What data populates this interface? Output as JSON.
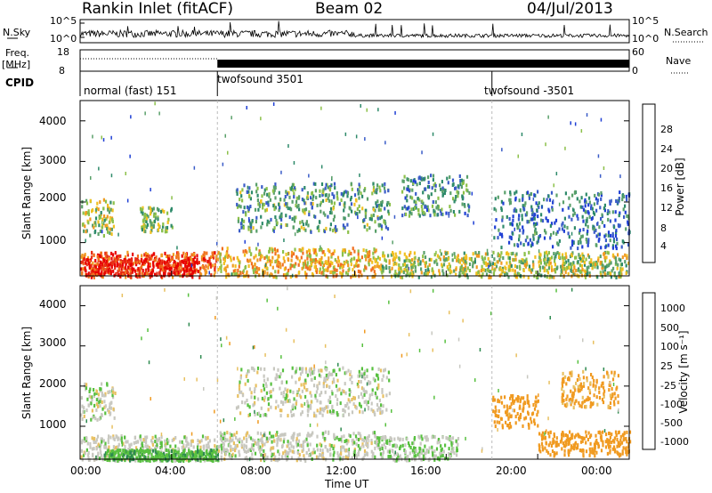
{
  "header": {
    "title": "Rankin Inlet (fitACF)",
    "beam": "Beam 02",
    "date": "04/Jul/2013"
  },
  "top_panel": {
    "left_label": "N.Sky",
    "left_ticks": [
      "10^5",
      "10^0"
    ],
    "right_label": "N.Search",
    "right_ticks": [
      "10^5",
      "10^0"
    ]
  },
  "freq_panel": {
    "left_label_1": "Freq.",
    "left_label_2": "[MHz]",
    "left_ticks": [
      "18",
      "8"
    ],
    "right_label": "Nave",
    "right_ticks": [
      "60",
      "0"
    ]
  },
  "cpid": {
    "label": "CPID",
    "segments": [
      {
        "label": "normal (fast) 151",
        "start_hour": 0
      },
      {
        "label": "twofsound 3501",
        "start_hour": 6
      },
      {
        "label": "twofsound -3501",
        "start_hour": 18
      }
    ]
  },
  "colors": {
    "power": [
      "#1f3fd4",
      "#3a5cc8",
      "#2e8a6a",
      "#5aa06a",
      "#8cc04a",
      "#f0c020",
      "#f09a20",
      "#f07020",
      "#e83018",
      "#e80000"
    ],
    "velocity": [
      "#2040c8",
      "#3a70b0",
      "#2e8a50",
      "#58c040",
      "#c8c8c0",
      "#e8c060",
      "#f09a20",
      "#e85010",
      "#e80000"
    ]
  },
  "chart_data": [
    {
      "type": "heatmap",
      "quantity": "power",
      "ylabel": "Slant Range [km]",
      "xlabel": "",
      "ylim": [
        180,
        4500
      ],
      "yticks": [
        "1000",
        "2000",
        "3000",
        "4000"
      ],
      "xlim": [
        0,
        24
      ],
      "colorbar_label": "Power [dB]",
      "colorbar_ticks": [
        "4",
        "8",
        "12",
        "16",
        "20",
        "24",
        "28"
      ],
      "colorbar_range": [
        0,
        30
      ],
      "regions": [
        {
          "t0": 0.0,
          "t1": 6.0,
          "r0": 180,
          "r1": 800,
          "value": 24
        },
        {
          "t0": 0.2,
          "t1": 5.0,
          "r0": 220,
          "r1": 650,
          "value": 28
        },
        {
          "t0": 6.0,
          "t1": 13.0,
          "r0": 180,
          "r1": 900,
          "value": 18
        },
        {
          "t0": 13.0,
          "t1": 24.0,
          "r0": 180,
          "r1": 800,
          "value": 14
        },
        {
          "t0": 0.0,
          "t1": 1.5,
          "r0": 1200,
          "r1": 2100,
          "value": 14
        },
        {
          "t0": 2.6,
          "t1": 4.0,
          "r0": 1300,
          "r1": 1900,
          "value": 12
        },
        {
          "t0": 6.8,
          "t1": 13.5,
          "r0": 1300,
          "r1": 2500,
          "value": 10
        },
        {
          "t0": 14.0,
          "t1": 17.0,
          "r0": 1700,
          "r1": 2700,
          "value": 8
        },
        {
          "t0": 18.0,
          "t1": 24.0,
          "r0": 900,
          "r1": 2300,
          "value": 6
        }
      ]
    },
    {
      "type": "heatmap",
      "quantity": "velocity",
      "ylabel": "Slant Range [km]",
      "xlabel": "Time UT",
      "ylim": [
        180,
        4500
      ],
      "yticks": [
        "1000",
        "2000",
        "3000",
        "4000"
      ],
      "xlim": [
        0,
        24
      ],
      "xticks": [
        "00:00",
        "04:00",
        "08:00",
        "12:00",
        "16:00",
        "20:00",
        "00:00"
      ],
      "colorbar_label": "Velocity [m s⁻¹]",
      "colorbar_ticks": [
        "1000",
        "500",
        "100",
        "25",
        "-25",
        "-100",
        "-500",
        "-1000"
      ],
      "regions": [
        {
          "t0": 0.0,
          "t1": 6.0,
          "r0": 180,
          "r1": 800,
          "value": 0
        },
        {
          "t0": 1.0,
          "t1": 6.0,
          "r0": 180,
          "r1": 450,
          "value": 80
        },
        {
          "t0": 6.0,
          "t1": 13.0,
          "r0": 180,
          "r1": 900,
          "value": 0
        },
        {
          "t0": 13.0,
          "t1": 16.5,
          "r0": 180,
          "r1": 800,
          "value": 20
        },
        {
          "t0": 0.0,
          "t1": 1.5,
          "r0": 1200,
          "r1": 2100,
          "value": 0
        },
        {
          "t0": 6.8,
          "t1": 13.5,
          "r0": 1300,
          "r1": 2500,
          "value": 0
        },
        {
          "t0": 18.0,
          "t1": 20.0,
          "r0": 1000,
          "r1": 1800,
          "value": -200
        },
        {
          "t0": 20.0,
          "t1": 24.0,
          "r0": 300,
          "r1": 900,
          "value": -300
        },
        {
          "t0": 21.0,
          "t1": 23.5,
          "r0": 1500,
          "r1": 2400,
          "value": -120
        }
      ]
    }
  ]
}
